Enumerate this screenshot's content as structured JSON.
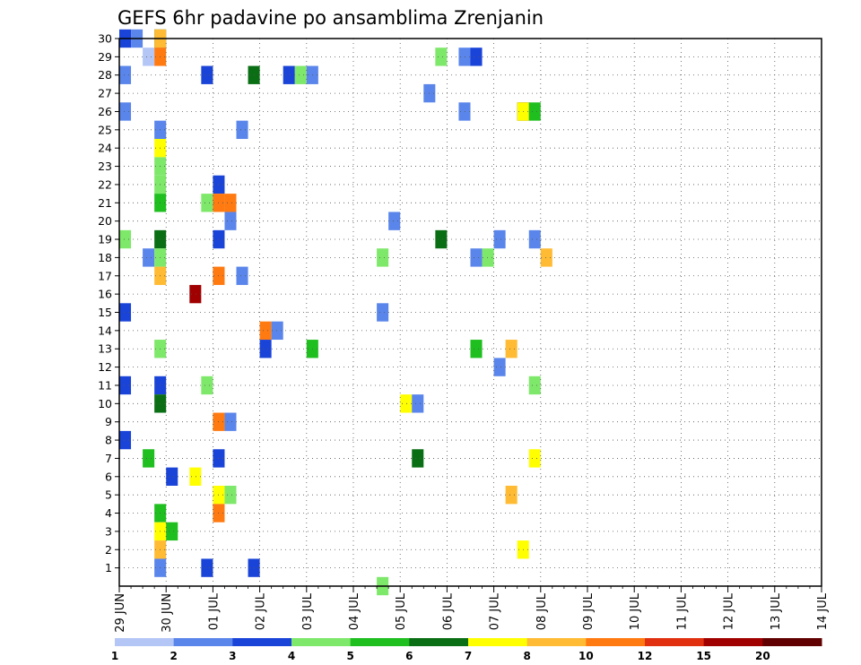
{
  "chart_data": {
    "type": "heatmap",
    "title": "GEFS 6hr padavine po ansamblima Zrenjanin",
    "y_ticks": [
      "1",
      "2",
      "3",
      "4",
      "5",
      "6",
      "7",
      "8",
      "9",
      "10",
      "11",
      "12",
      "13",
      "14",
      "15",
      "16",
      "17",
      "18",
      "19",
      "20",
      "21",
      "22",
      "23",
      "24",
      "25",
      "26",
      "27",
      "28",
      "29",
      "30"
    ],
    "x_ticks": [
      "29 JUN",
      "30 JUN",
      "01 JUL",
      "02 JUL",
      "03 JUL",
      "04 JUL",
      "05 JUL",
      "06 JUL",
      "07 JUL",
      "08 JUL",
      "09 JUL",
      "10 JUL",
      "11 JUL",
      "12 JUL",
      "13 JUL",
      "14 JUL"
    ],
    "x_range_days": [
      0,
      15
    ],
    "y_range": [
      0,
      30
    ],
    "grid": true,
    "legend_position": "bottom",
    "colorbar": {
      "labels": [
        "1",
        "2",
        "3",
        "4",
        "5",
        "6",
        "7",
        "8",
        "10",
        "12",
        "15",
        "20"
      ],
      "colors": [
        "#b3c6f5",
        "#5a85ea",
        "#1a44d8",
        "#7ee86a",
        "#1fbf1f",
        "#0a6e14",
        "#ffff00",
        "#ffbb33",
        "#ff7a10",
        "#e03010",
        "#a00000",
        "#600000"
      ]
    },
    "cells": [
      {
        "t": 0,
        "m": 30,
        "c": "#1a44d8"
      },
      {
        "t": 1,
        "m": 30,
        "c": "#5a85ea"
      },
      {
        "t": 3,
        "m": 30,
        "c": "#0a6e14"
      },
      {
        "t": 3,
        "m": 30,
        "c": "#ffbb33"
      },
      {
        "t": 2,
        "m": 29,
        "c": "#b3c6f5"
      },
      {
        "t": 3,
        "m": 29,
        "c": "#ff7a10"
      },
      {
        "t": 27,
        "m": 29,
        "c": "#7ee86a"
      },
      {
        "t": 29,
        "m": 29,
        "c": "#5a85ea"
      },
      {
        "t": 30,
        "m": 29,
        "c": "#1a44d8"
      },
      {
        "t": 0,
        "m": 28,
        "c": "#5a85ea"
      },
      {
        "t": 7,
        "m": 28,
        "c": "#1a44d8"
      },
      {
        "t": 11,
        "m": 28,
        "c": "#0a6e14"
      },
      {
        "t": 14,
        "m": 28,
        "c": "#1a44d8"
      },
      {
        "t": 15,
        "m": 28,
        "c": "#7ee86a"
      },
      {
        "t": 16,
        "m": 28,
        "c": "#5a85ea"
      },
      {
        "t": 26,
        "m": 27,
        "c": "#5a85ea"
      },
      {
        "t": 0,
        "m": 26,
        "c": "#5a85ea"
      },
      {
        "t": 29,
        "m": 26,
        "c": "#5a85ea"
      },
      {
        "t": 34,
        "m": 26,
        "c": "#600000"
      },
      {
        "t": 34,
        "m": 26,
        "c": "#ffff00"
      },
      {
        "t": 35,
        "m": 26,
        "c": "#1fbf1f"
      },
      {
        "t": 3,
        "m": 25,
        "c": "#5a85ea"
      },
      {
        "t": 10,
        "m": 25,
        "c": "#5a85ea"
      },
      {
        "t": 3,
        "m": 24,
        "c": "#ffff00"
      },
      {
        "t": 3,
        "m": 23,
        "c": "#7ee86a"
      },
      {
        "t": 3,
        "m": 22,
        "c": "#7ee86a"
      },
      {
        "t": 8,
        "m": 22,
        "c": "#1a44d8"
      },
      {
        "t": 3,
        "m": 21,
        "c": "#1fbf1f"
      },
      {
        "t": 7,
        "m": 21,
        "c": "#7ee86a"
      },
      {
        "t": 8,
        "m": 21,
        "c": "#ff7a10"
      },
      {
        "t": 9,
        "m": 21,
        "c": "#ff7a10"
      },
      {
        "t": 9,
        "m": 20,
        "c": "#5a85ea"
      },
      {
        "t": 23,
        "m": 20,
        "c": "#5a85ea"
      },
      {
        "t": 0,
        "m": 19,
        "c": "#7ee86a"
      },
      {
        "t": 3,
        "m": 19,
        "c": "#0a6e14"
      },
      {
        "t": 8,
        "m": 19,
        "c": "#1a44d8"
      },
      {
        "t": 27,
        "m": 19,
        "c": "#0a6e14"
      },
      {
        "t": 32,
        "m": 19,
        "c": "#5a85ea"
      },
      {
        "t": 35,
        "m": 19,
        "c": "#5a85ea"
      },
      {
        "t": 2,
        "m": 18,
        "c": "#5a85ea"
      },
      {
        "t": 3,
        "m": 18,
        "c": "#7ee86a"
      },
      {
        "t": 22,
        "m": 18,
        "c": "#7ee86a"
      },
      {
        "t": 30,
        "m": 18,
        "c": "#5a85ea"
      },
      {
        "t": 31,
        "m": 18,
        "c": "#7ee86a"
      },
      {
        "t": 36,
        "m": 18,
        "c": "#ffbb33"
      },
      {
        "t": 3,
        "m": 17,
        "c": "#ffbb33"
      },
      {
        "t": 8,
        "m": 17,
        "c": "#ff7a10"
      },
      {
        "t": 10,
        "m": 17,
        "c": "#5a85ea"
      },
      {
        "t": 6,
        "m": 16,
        "c": "#a00000"
      },
      {
        "t": 0,
        "m": 15,
        "c": "#1a44d8"
      },
      {
        "t": 22,
        "m": 15,
        "c": "#5a85ea"
      },
      {
        "t": 12,
        "m": 14,
        "c": "#ff7a10"
      },
      {
        "t": 13,
        "m": 14,
        "c": "#5a85ea"
      },
      {
        "t": 3,
        "m": 13,
        "c": "#7ee86a"
      },
      {
        "t": 12,
        "m": 13,
        "c": "#1a44d8"
      },
      {
        "t": 16,
        "m": 13,
        "c": "#1fbf1f"
      },
      {
        "t": 30,
        "m": 13,
        "c": "#1fbf1f"
      },
      {
        "t": 33,
        "m": 13,
        "c": "#ffbb33"
      },
      {
        "t": 32,
        "m": 12,
        "c": "#5a85ea"
      },
      {
        "t": 0,
        "m": 11,
        "c": "#1a44d8"
      },
      {
        "t": 3,
        "m": 11,
        "c": "#1a44d8"
      },
      {
        "t": 7,
        "m": 11,
        "c": "#7ee86a"
      },
      {
        "t": 35,
        "m": 11,
        "c": "#7ee86a"
      },
      {
        "t": 3,
        "m": 10,
        "c": "#0a6e14"
      },
      {
        "t": 24,
        "m": 10,
        "c": "#ffff00"
      },
      {
        "t": 25,
        "m": 10,
        "c": "#5a85ea"
      },
      {
        "t": 8,
        "m": 9,
        "c": "#ff7a10"
      },
      {
        "t": 9,
        "m": 9,
        "c": "#5a85ea"
      },
      {
        "t": 0,
        "m": 8,
        "c": "#1a44d8"
      },
      {
        "t": 2,
        "m": 7,
        "c": "#1fbf1f"
      },
      {
        "t": 8,
        "m": 7,
        "c": "#1a44d8"
      },
      {
        "t": 25,
        "m": 7,
        "c": "#0a6e14"
      },
      {
        "t": 35,
        "m": 7,
        "c": "#ffff00"
      },
      {
        "t": 4,
        "m": 6,
        "c": "#1a44d8"
      },
      {
        "t": 6,
        "m": 6,
        "c": "#ffff00"
      },
      {
        "t": 8,
        "m": 5,
        "c": "#ffff00"
      },
      {
        "t": 9,
        "m": 5,
        "c": "#7ee86a"
      },
      {
        "t": 33,
        "m": 5,
        "c": "#ffbb33"
      },
      {
        "t": 3,
        "m": 4,
        "c": "#1fbf1f"
      },
      {
        "t": 8,
        "m": 4,
        "c": "#ff7a10"
      },
      {
        "t": 3,
        "m": 3,
        "c": "#ffff00"
      },
      {
        "t": 4,
        "m": 3,
        "c": "#1fbf1f"
      },
      {
        "t": 3,
        "m": 2,
        "c": "#ffbb33"
      },
      {
        "t": 34,
        "m": 2,
        "c": "#ffff00"
      },
      {
        "t": 3,
        "m": 1,
        "c": "#5a85ea"
      },
      {
        "t": 7,
        "m": 1,
        "c": "#1a44d8"
      },
      {
        "t": 11,
        "m": 1,
        "c": "#1a44d8"
      },
      {
        "t": 22,
        "m": 0,
        "c": "#7ee86a"
      }
    ]
  }
}
